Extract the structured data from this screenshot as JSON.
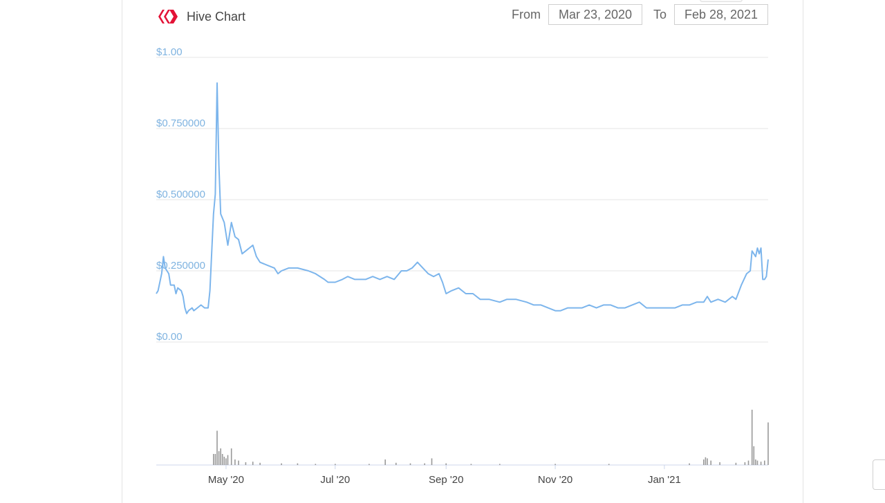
{
  "header": {
    "title": "Hive Chart",
    "logo_icon": "hive-logo-icon",
    "brand_color": "#e31337"
  },
  "range": {
    "from_label": "From",
    "from_value": "Mar 23, 2020",
    "to_label": "To",
    "to_value": "Feb 28, 2021"
  },
  "chart_data": {
    "type": "line",
    "title": "Hive Chart",
    "xlabel": "",
    "ylabel": "",
    "ylim": [
      0,
      1.0
    ],
    "xlim": [
      "2020-03-23",
      "2021-02-28"
    ],
    "grid": true,
    "line_color": "#7cb5ec",
    "yticks": [
      {
        "value": 0,
        "label": "$0.00"
      },
      {
        "value": 0.25,
        "label": "$0.250000"
      },
      {
        "value": 0.5,
        "label": "$0.500000"
      },
      {
        "value": 0.75,
        "label": "$0.750000"
      },
      {
        "value": 1.0,
        "label": "$1.00"
      }
    ],
    "xticks": [
      {
        "value": "2020-05-01",
        "label": "May '20"
      },
      {
        "value": "2020-07-01",
        "label": "Jul '20"
      },
      {
        "value": "2020-09-01",
        "label": "Sep '20"
      },
      {
        "value": "2020-11-01",
        "label": "Nov '20"
      },
      {
        "value": "2021-01-01",
        "label": "Jan '21"
      }
    ],
    "series": [
      {
        "points": [
          [
            "2020-03-23",
            0.17
          ],
          [
            "2020-03-24",
            0.18
          ],
          [
            "2020-03-26",
            0.24
          ],
          [
            "2020-03-27",
            0.3
          ],
          [
            "2020-03-28",
            0.26
          ],
          [
            "2020-03-30",
            0.24
          ],
          [
            "2020-03-31",
            0.2
          ],
          [
            "2020-04-02",
            0.2
          ],
          [
            "2020-04-03",
            0.17
          ],
          [
            "2020-04-04",
            0.19
          ],
          [
            "2020-04-06",
            0.18
          ],
          [
            "2020-04-07",
            0.16
          ],
          [
            "2020-04-08",
            0.12
          ],
          [
            "2020-04-09",
            0.1
          ],
          [
            "2020-04-10",
            0.11
          ],
          [
            "2020-04-12",
            0.12
          ],
          [
            "2020-04-13",
            0.11
          ],
          [
            "2020-04-15",
            0.12
          ],
          [
            "2020-04-17",
            0.13
          ],
          [
            "2020-04-19",
            0.12
          ],
          [
            "2020-04-21",
            0.12
          ],
          [
            "2020-04-22",
            0.18
          ],
          [
            "2020-04-24",
            0.45
          ],
          [
            "2020-04-25",
            0.52
          ],
          [
            "2020-04-26",
            0.91
          ],
          [
            "2020-04-27",
            0.62
          ],
          [
            "2020-04-28",
            0.45
          ],
          [
            "2020-04-30",
            0.42
          ],
          [
            "2020-05-02",
            0.34
          ],
          [
            "2020-05-04",
            0.42
          ],
          [
            "2020-05-06",
            0.37
          ],
          [
            "2020-05-08",
            0.36
          ],
          [
            "2020-05-10",
            0.31
          ],
          [
            "2020-05-12",
            0.32
          ],
          [
            "2020-05-14",
            0.33
          ],
          [
            "2020-05-16",
            0.34
          ],
          [
            "2020-05-18",
            0.3
          ],
          [
            "2020-05-20",
            0.28
          ],
          [
            "2020-05-24",
            0.27
          ],
          [
            "2020-05-28",
            0.26
          ],
          [
            "2020-05-30",
            0.24
          ],
          [
            "2020-06-01",
            0.25
          ],
          [
            "2020-06-05",
            0.26
          ],
          [
            "2020-06-10",
            0.26
          ],
          [
            "2020-06-16",
            0.25
          ],
          [
            "2020-06-20",
            0.24
          ],
          [
            "2020-06-25",
            0.22
          ],
          [
            "2020-06-27",
            0.21
          ],
          [
            "2020-07-01",
            0.21
          ],
          [
            "2020-07-05",
            0.22
          ],
          [
            "2020-07-08",
            0.23
          ],
          [
            "2020-07-12",
            0.22
          ],
          [
            "2020-07-18",
            0.22
          ],
          [
            "2020-07-22",
            0.23
          ],
          [
            "2020-07-26",
            0.22
          ],
          [
            "2020-07-30",
            0.23
          ],
          [
            "2020-08-03",
            0.22
          ],
          [
            "2020-08-07",
            0.25
          ],
          [
            "2020-08-10",
            0.25
          ],
          [
            "2020-08-13",
            0.26
          ],
          [
            "2020-08-16",
            0.28
          ],
          [
            "2020-08-19",
            0.26
          ],
          [
            "2020-08-22",
            0.24
          ],
          [
            "2020-08-25",
            0.23
          ],
          [
            "2020-08-28",
            0.24
          ],
          [
            "2020-08-30",
            0.21
          ],
          [
            "2020-09-01",
            0.17
          ],
          [
            "2020-09-04",
            0.18
          ],
          [
            "2020-09-08",
            0.19
          ],
          [
            "2020-09-12",
            0.17
          ],
          [
            "2020-09-16",
            0.17
          ],
          [
            "2020-09-20",
            0.15
          ],
          [
            "2020-09-25",
            0.15
          ],
          [
            "2020-10-01",
            0.14
          ],
          [
            "2020-10-05",
            0.15
          ],
          [
            "2020-10-10",
            0.15
          ],
          [
            "2020-10-16",
            0.14
          ],
          [
            "2020-10-20",
            0.13
          ],
          [
            "2020-10-24",
            0.13
          ],
          [
            "2020-10-28",
            0.12
          ],
          [
            "2020-11-01",
            0.11
          ],
          [
            "2020-11-04",
            0.11
          ],
          [
            "2020-11-08",
            0.12
          ],
          [
            "2020-11-12",
            0.12
          ],
          [
            "2020-11-16",
            0.12
          ],
          [
            "2020-11-20",
            0.13
          ],
          [
            "2020-11-24",
            0.12
          ],
          [
            "2020-11-28",
            0.13
          ],
          [
            "2020-12-02",
            0.13
          ],
          [
            "2020-12-06",
            0.12
          ],
          [
            "2020-12-10",
            0.12
          ],
          [
            "2020-12-14",
            0.13
          ],
          [
            "2020-12-18",
            0.14
          ],
          [
            "2020-12-22",
            0.12
          ],
          [
            "2020-12-26",
            0.12
          ],
          [
            "2020-12-30",
            0.12
          ],
          [
            "2021-01-03",
            0.12
          ],
          [
            "2021-01-07",
            0.12
          ],
          [
            "2021-01-11",
            0.13
          ],
          [
            "2021-01-15",
            0.13
          ],
          [
            "2021-01-19",
            0.14
          ],
          [
            "2021-01-23",
            0.14
          ],
          [
            "2021-01-25",
            0.16
          ],
          [
            "2021-01-27",
            0.14
          ],
          [
            "2021-01-31",
            0.15
          ],
          [
            "2021-02-04",
            0.14
          ],
          [
            "2021-02-08",
            0.16
          ],
          [
            "2021-02-10",
            0.15
          ],
          [
            "2021-02-13",
            0.2
          ],
          [
            "2021-02-16",
            0.24
          ],
          [
            "2021-02-18",
            0.25
          ],
          [
            "2021-02-19",
            0.32
          ],
          [
            "2021-02-20",
            0.31
          ],
          [
            "2021-02-21",
            0.3
          ],
          [
            "2021-02-22",
            0.33
          ],
          [
            "2021-02-23",
            0.31
          ],
          [
            "2021-02-24",
            0.33
          ],
          [
            "2021-02-25",
            0.22
          ],
          [
            "2021-02-26",
            0.22
          ],
          [
            "2021-02-27",
            0.23
          ],
          [
            "2021-02-28",
            0.29
          ]
        ]
      }
    ],
    "volume": {
      "color": "#999999",
      "bars": [
        [
          "2020-04-24",
          0.2
        ],
        [
          "2020-04-25",
          0.2
        ],
        [
          "2020-04-26",
          0.62
        ],
        [
          "2020-04-27",
          0.25
        ],
        [
          "2020-04-28",
          0.3
        ],
        [
          "2020-04-29",
          0.2
        ],
        [
          "2020-04-30",
          0.15
        ],
        [
          "2020-05-01",
          0.12
        ],
        [
          "2020-05-02",
          0.18
        ],
        [
          "2020-05-04",
          0.3
        ],
        [
          "2020-05-06",
          0.1
        ],
        [
          "2020-05-08",
          0.08
        ],
        [
          "2020-05-12",
          0.05
        ],
        [
          "2020-05-16",
          0.06
        ],
        [
          "2020-05-20",
          0.04
        ],
        [
          "2020-06-01",
          0.03
        ],
        [
          "2020-06-10",
          0.03
        ],
        [
          "2020-06-20",
          0.02
        ],
        [
          "2020-07-01",
          0.02
        ],
        [
          "2020-07-20",
          0.02
        ],
        [
          "2020-07-29",
          0.1
        ],
        [
          "2020-08-04",
          0.04
        ],
        [
          "2020-08-12",
          0.03
        ],
        [
          "2020-08-20",
          0.03
        ],
        [
          "2020-08-24",
          0.12
        ],
        [
          "2020-09-01",
          0.03
        ],
        [
          "2020-09-15",
          0.02
        ],
        [
          "2020-10-01",
          0.02
        ],
        [
          "2020-11-01",
          0.02
        ],
        [
          "2020-12-01",
          0.02
        ],
        [
          "2021-01-15",
          0.03
        ],
        [
          "2021-01-23",
          0.1
        ],
        [
          "2021-01-24",
          0.14
        ],
        [
          "2021-01-25",
          0.12
        ],
        [
          "2021-01-27",
          0.08
        ],
        [
          "2021-02-01",
          0.05
        ],
        [
          "2021-02-10",
          0.04
        ],
        [
          "2021-02-15",
          0.05
        ],
        [
          "2021-02-17",
          0.08
        ],
        [
          "2021-02-19",
          1.0
        ],
        [
          "2021-02-20",
          0.34
        ],
        [
          "2021-02-21",
          0.1
        ],
        [
          "2021-02-22",
          0.08
        ],
        [
          "2021-02-24",
          0.06
        ],
        [
          "2021-02-26",
          0.08
        ],
        [
          "2021-02-28",
          0.77
        ]
      ]
    }
  }
}
